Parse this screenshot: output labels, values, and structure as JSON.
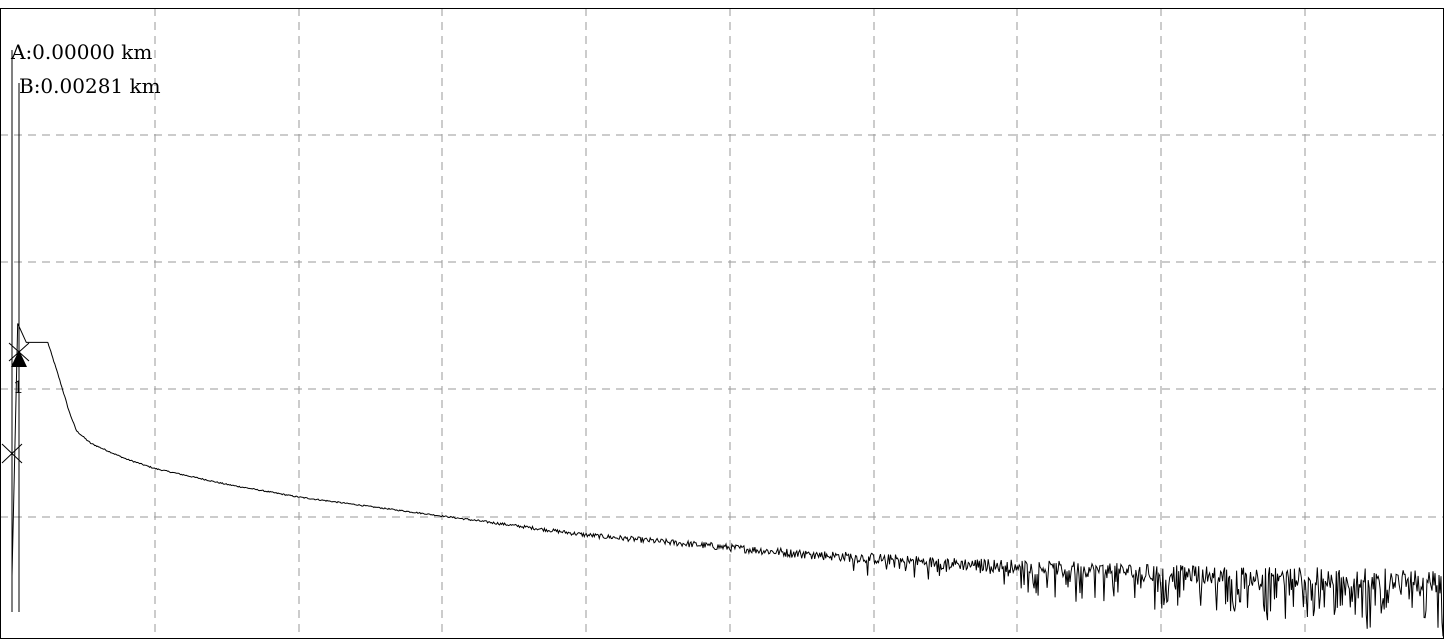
{
  "readouts": {
    "a": "A:0.00000 km",
    "b": "B:0.00281 km"
  },
  "event_marker": {
    "label": "1"
  },
  "colors": {
    "background": "#ffffff",
    "grid": "#9a9a9a",
    "trace": "#000000"
  },
  "icons": [
    "x-marker-icon",
    "triangle-up-icon"
  ],
  "chart_data": {
    "type": "line",
    "title": "",
    "xlabel": "",
    "ylabel": "",
    "grid": true,
    "grid_divisions": {
      "x": 10,
      "y": 5
    },
    "xlim": [
      0,
      1
    ],
    "ylim": [
      0,
      1
    ],
    "cursors": {
      "A_km": 0.0,
      "B_km": 0.00281
    },
    "series": [
      {
        "x": [
          0.0,
          0.004,
          0.01,
          0.025,
          0.032,
          0.04,
          0.045,
          0.05,
          0.055,
          0.06,
          0.07,
          0.08,
          0.1,
          0.15,
          0.2,
          0.25,
          0.3,
          0.35,
          0.4,
          0.45,
          0.5,
          0.55,
          0.6,
          0.65,
          0.7,
          0.75,
          0.8,
          0.85,
          0.9,
          0.95,
          1.0
        ],
        "y": [
          0.1,
          0.5,
          0.47,
          0.47,
          0.42,
          0.36,
          0.33,
          0.32,
          0.31,
          0.305,
          0.295,
          0.285,
          0.27,
          0.245,
          0.225,
          0.21,
          0.195,
          0.18,
          0.165,
          0.155,
          0.145,
          0.135,
          0.128,
          0.12,
          0.115,
          0.11,
          0.105,
          0.1,
          0.098,
          0.095,
          0.09
        ]
      }
    ]
  }
}
